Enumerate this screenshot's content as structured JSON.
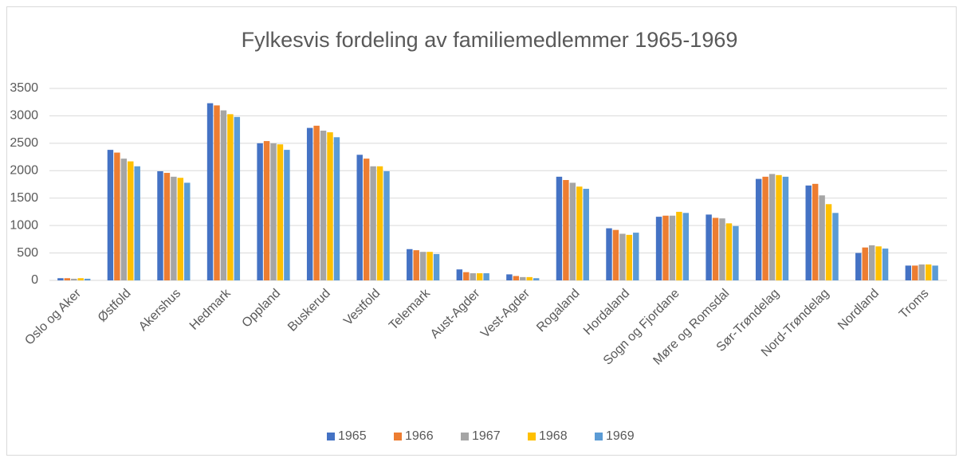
{
  "chart_data": {
    "type": "bar",
    "title": "Fylkesvis fordeling av familiemedlemmer  1965-1969",
    "categories": [
      "Oslo og Aker",
      "Østfold",
      "Akershus",
      "Hedmark",
      "Oppland",
      "Buskerud",
      "Vestfold",
      "Telemark",
      "Aust-Agder",
      "Vest-Agder",
      "Rogaland",
      "Hordaland",
      "Sogn og Fjordane",
      "Møre og Romsdal",
      "Sør-Trøndelag",
      "Nord-Trøndelag",
      "Nordland",
      "Troms"
    ],
    "series": [
      {
        "name": "1965",
        "color": "#4472c4",
        "values": [
          40,
          2380,
          1990,
          3230,
          2500,
          2780,
          2290,
          570,
          200,
          110,
          1890,
          950,
          1160,
          1200,
          1850,
          1730,
          500,
          270
        ]
      },
      {
        "name": "1966",
        "color": "#ed7d31",
        "values": [
          40,
          2330,
          1960,
          3190,
          2540,
          2820,
          2220,
          550,
          150,
          80,
          1830,
          920,
          1180,
          1140,
          1890,
          1760,
          600,
          270
        ]
      },
      {
        "name": "1967",
        "color": "#a5a5a5",
        "values": [
          30,
          2220,
          1890,
          3100,
          2500,
          2730,
          2080,
          520,
          130,
          60,
          1780,
          850,
          1180,
          1130,
          1940,
          1550,
          640,
          290
        ]
      },
      {
        "name": "1968",
        "color": "#ffc000",
        "values": [
          40,
          2170,
          1870,
          3030,
          2480,
          2700,
          2080,
          520,
          130,
          60,
          1710,
          830,
          1250,
          1040,
          1920,
          1390,
          620,
          290
        ]
      },
      {
        "name": "1969",
        "color": "#5b9bd5",
        "values": [
          30,
          2080,
          1780,
          2980,
          2380,
          2610,
          1990,
          480,
          130,
          40,
          1670,
          870,
          1230,
          990,
          1890,
          1230,
          580,
          270
        ]
      }
    ],
    "ylim": [
      0,
      3500
    ],
    "yticks": [
      0,
      500,
      1000,
      1500,
      2000,
      2500,
      3000,
      3500
    ],
    "grid": true,
    "legend": "bottom"
  }
}
